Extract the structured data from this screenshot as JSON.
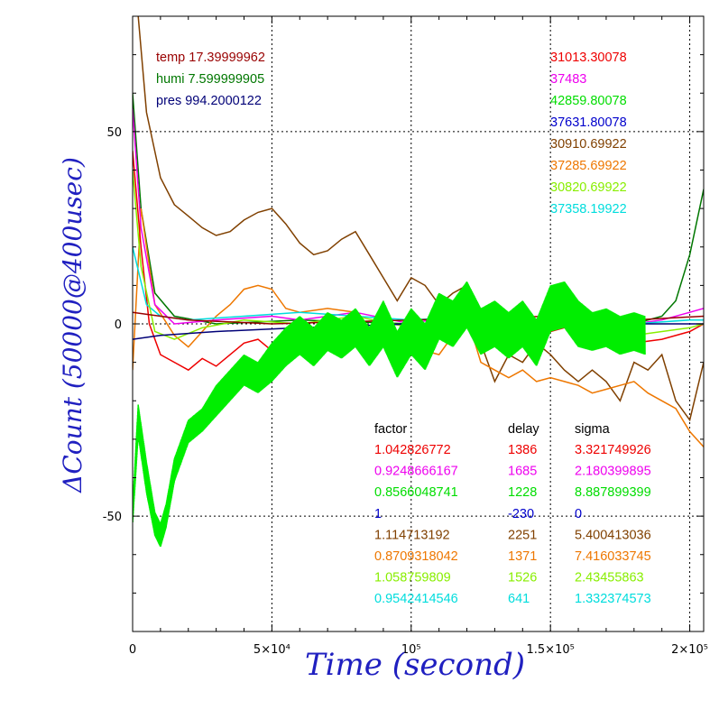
{
  "chart_data": {
    "type": "line",
    "xlabel": "Time (second)",
    "ylabel": "ΔCount (50000@400usec)",
    "xlim": [
      0,
      205000
    ],
    "ylim": [
      -80,
      80
    ],
    "grid": true,
    "x_ticks": [
      {
        "value": 0,
        "label": "0"
      },
      {
        "value": 50000,
        "label": "5×10⁴"
      },
      {
        "value": 100000,
        "label": "10⁵"
      },
      {
        "value": 150000,
        "label": "1.5×10⁵"
      },
      {
        "value": 200000,
        "label": "2×10⁵"
      }
    ],
    "y_ticks": [
      {
        "value": 50,
        "label": "50"
      },
      {
        "value": 0,
        "label": "0"
      },
      {
        "value": -50,
        "label": "-50"
      }
    ],
    "env": [
      {
        "label": "temp 17.39999962",
        "color": "#990000"
      },
      {
        "label": "humi 7.599999905",
        "color": "#007700"
      },
      {
        "label": "pres 994.2000122",
        "color": "#000077"
      }
    ],
    "offsets": [
      {
        "label": "31013.30078",
        "color": "#ee0000"
      },
      {
        "label": "37483",
        "color": "#ee00ee"
      },
      {
        "label": "42859.80078",
        "color": "#00dd00"
      },
      {
        "label": "37631.80078",
        "color": "#0000cc"
      },
      {
        "label": "30910.69922",
        "color": "#804000"
      },
      {
        "label": "37285.69922",
        "color": "#ee7700"
      },
      {
        "label": "30820.69922",
        "color": "#88ee00"
      },
      {
        "label": "37358.19922",
        "color": "#00dddd"
      }
    ],
    "table_headers": [
      "factor",
      "delay",
      "sigma"
    ],
    "table_rows": [
      {
        "factor": "1.042826772",
        "delay": "1386",
        "sigma": "3.321749926",
        "color": "#ee0000"
      },
      {
        "factor": "0.9248666167",
        "delay": "1685",
        "sigma": "2.180399895",
        "color": "#ee00ee"
      },
      {
        "factor": "0.8566048741",
        "delay": "1228",
        "sigma": "8.887899399",
        "color": "#00dd00"
      },
      {
        "factor": "1",
        "delay": "-230",
        "sigma": "0",
        "color": "#0000cc"
      },
      {
        "factor": "1.114713192",
        "delay": "2251",
        "sigma": "5.400413036",
        "color": "#804000"
      },
      {
        "factor": "0.8709318042",
        "delay": "1371",
        "sigma": "7.416033745",
        "color": "#ee7700"
      },
      {
        "factor": "1.058759809",
        "delay": "1526",
        "sigma": "2.43455863",
        "color": "#88ee00"
      },
      {
        "factor": "0.9542414546",
        "delay": "641",
        "sigma": "1.332374573",
        "color": "#00dddd"
      }
    ],
    "series": [
      {
        "color": "#804000",
        "x": [
          0,
          2000,
          5000,
          10000,
          15000,
          20000,
          25000,
          30000,
          35000,
          40000,
          45000,
          50000,
          55000,
          60000,
          65000,
          70000,
          75000,
          80000,
          85000,
          90000,
          95000,
          100000,
          105000,
          110000,
          115000,
          120000,
          125000,
          130000,
          135000,
          140000,
          145000,
          150000,
          155000,
          160000,
          165000,
          170000,
          175000,
          180000,
          185000,
          190000,
          195000,
          200000,
          205000
        ],
        "values": [
          100,
          80,
          55,
          38,
          31,
          28,
          25,
          23,
          24,
          27,
          29,
          30,
          26,
          21,
          18,
          19,
          22,
          24,
          18,
          12,
          6,
          12,
          10,
          5,
          8,
          10,
          -5,
          -15,
          -8,
          -10,
          -5,
          -8,
          -12,
          -15,
          -12,
          -15,
          -20,
          -10,
          -12,
          -8,
          -20,
          -25,
          -10
        ]
      },
      {
        "color": "#007700",
        "x": [
          0,
          3000,
          8000,
          15000,
          30000,
          60000,
          100000,
          150000,
          180000,
          190000,
          195000,
          200000,
          205000
        ],
        "values": [
          60,
          30,
          8,
          2,
          0,
          1,
          0,
          1,
          0,
          2,
          6,
          18,
          35
        ]
      },
      {
        "color": "#ee7700",
        "x": [
          0,
          3000,
          8000,
          15000,
          20000,
          25000,
          30000,
          35000,
          40000,
          45000,
          50000,
          55000,
          60000,
          70000,
          80000,
          90000,
          100000,
          110000,
          120000,
          125000,
          130000,
          135000,
          140000,
          145000,
          150000,
          155000,
          160000,
          165000,
          170000,
          175000,
          180000,
          185000,
          190000,
          195000,
          200000,
          205000
        ],
        "values": [
          -12,
          30,
          5,
          -3,
          -6,
          -2,
          2,
          5,
          9,
          10,
          9,
          4,
          3,
          4,
          3,
          -5,
          -6,
          -8,
          2,
          -10,
          -12,
          -14,
          -12,
          -15,
          -14,
          -15,
          -16,
          -18,
          -17,
          -16,
          -15,
          -18,
          -20,
          -22,
          -28,
          -32
        ]
      },
      {
        "color": "#ee0000",
        "x": [
          0,
          3000,
          6000,
          10000,
          15000,
          20000,
          25000,
          30000,
          35000,
          40000,
          45000,
          50000,
          60000,
          70000,
          80000,
          90000,
          100000,
          110000,
          120000,
          130000,
          140000,
          150000,
          160000,
          170000,
          180000,
          190000,
          200000,
          205000
        ],
        "values": [
          45,
          20,
          0,
          -8,
          -10,
          -12,
          -9,
          -11,
          -8,
          -5,
          -4,
          -7,
          -5,
          -3,
          0,
          -2,
          -3,
          -1,
          3,
          -2,
          -4,
          -2,
          0,
          -5,
          -5,
          -4,
          -2,
          0
        ]
      },
      {
        "color": "#ee00ee",
        "x": [
          0,
          3000,
          8000,
          15000,
          30000,
          50000,
          60000,
          80000,
          100000,
          120000,
          140000,
          160000,
          180000,
          190000,
          200000,
          205000
        ],
        "values": [
          56,
          25,
          5,
          0,
          1,
          2,
          1,
          3,
          0,
          3,
          1,
          2,
          0,
          1,
          3,
          4
        ]
      },
      {
        "color": "#00dddd",
        "x": [
          0,
          5000,
          10000,
          20000,
          40000,
          60000,
          80000,
          100000,
          120000,
          140000,
          160000,
          180000,
          200000,
          205000
        ],
        "values": [
          20,
          5,
          2,
          1,
          2,
          3,
          2,
          1,
          2,
          1,
          1,
          0,
          1,
          1
        ]
      },
      {
        "color": "#88ee00",
        "x": [
          0,
          3000,
          8000,
          15000,
          25000,
          40000,
          60000,
          80000,
          100000,
          120000,
          140000,
          160000,
          180000,
          200000,
          205000
        ],
        "values": [
          40,
          15,
          -2,
          -4,
          -1,
          1,
          0,
          2,
          -1,
          2,
          1,
          -1,
          -3,
          -1,
          0
        ]
      },
      {
        "color": "#000077",
        "x": [
          0,
          10000,
          30000,
          60000,
          100000,
          150000,
          180000,
          205000
        ],
        "values": [
          -4,
          -3,
          -2,
          -1,
          0,
          0,
          0,
          0
        ]
      },
      {
        "color": "#990000",
        "x": [
          0,
          20000,
          50000,
          100000,
          150000,
          180000,
          205000
        ],
        "values": [
          3,
          1,
          0,
          1,
          2,
          1,
          2
        ]
      },
      {
        "color": "#00ee00",
        "x": [
          0,
          2000,
          5000,
          8000,
          10000,
          12000,
          15000,
          20000,
          25000,
          30000,
          35000,
          40000,
          45000,
          50000,
          55000,
          60000,
          65000,
          70000,
          75000,
          80000,
          85000,
          90000,
          95000,
          100000,
          105000,
          110000,
          115000,
          120000,
          125000,
          130000,
          135000,
          140000,
          145000,
          150000,
          155000,
          160000,
          165000,
          170000,
          175000,
          180000,
          184000
        ],
        "values": [
          -50,
          -25,
          -40,
          -52,
          -55,
          -50,
          -38,
          -28,
          -25,
          -20,
          -16,
          -12,
          -14,
          -10,
          -6,
          -3,
          -6,
          -2,
          -4,
          -1,
          -6,
          0,
          -8,
          -2,
          -6,
          2,
          0,
          5,
          -2,
          0,
          -3,
          0,
          -5,
          4,
          5,
          0,
          -2,
          -1,
          -3,
          -2,
          -3
        ],
        "amplitude": [
          2,
          4,
          4,
          3,
          3,
          3,
          3,
          3,
          3,
          4,
          4,
          4,
          4,
          5,
          5,
          5,
          5,
          5,
          5,
          5,
          5,
          6,
          6,
          6,
          6,
          6,
          6,
          6,
          6,
          6,
          6,
          6,
          6,
          6,
          6,
          6,
          5,
          5,
          5,
          5,
          5
        ]
      }
    ]
  }
}
